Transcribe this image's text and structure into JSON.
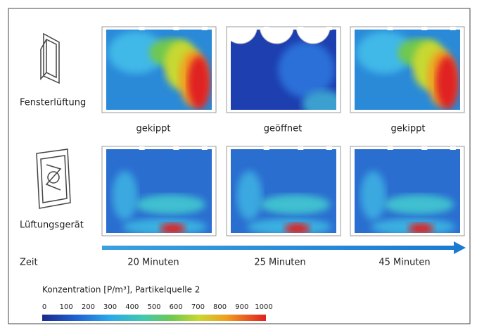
{
  "rows": [
    {
      "label": "Fensterlüftung",
      "captions": [
        "gekippt",
        "geöffnet",
        "gekippt"
      ]
    },
    {
      "label": "Lüftungsgerät"
    }
  ],
  "timeline": {
    "label": "Zeit",
    "times": [
      "20 Minuten",
      "25 Minuten",
      "45 Minuten"
    ]
  },
  "colorbar": {
    "title": "Konzentration [P/m³], Partikelquelle 2",
    "ticks": [
      0,
      100,
      200,
      300,
      400,
      500,
      600,
      700,
      800,
      900,
      1000
    ]
  }
}
